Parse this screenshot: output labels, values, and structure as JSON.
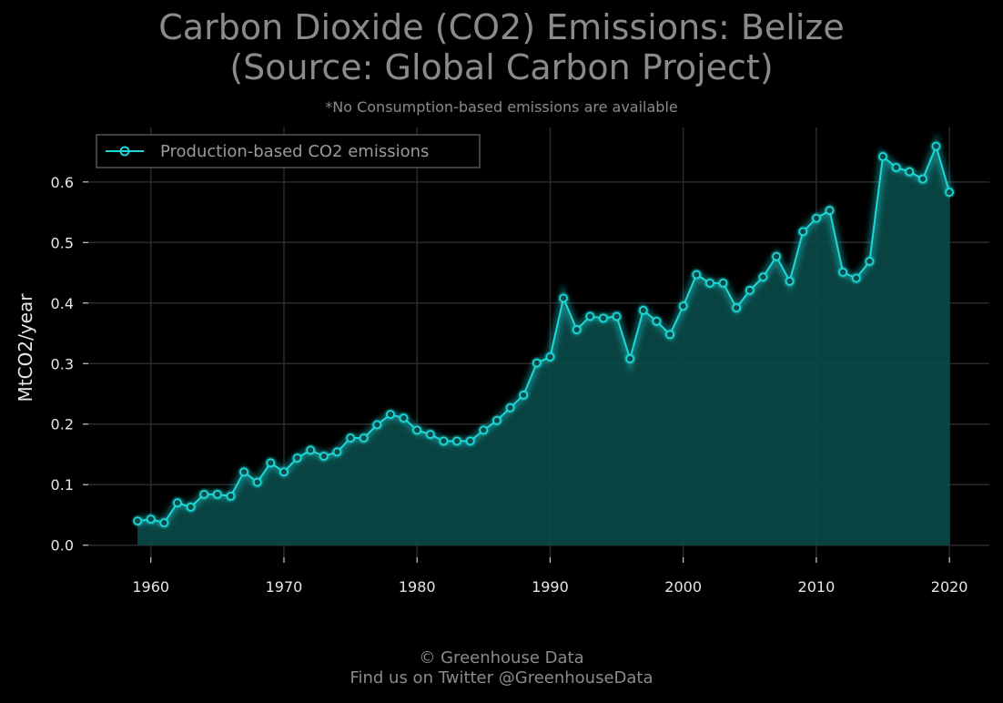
{
  "header": {
    "title_line1": "Carbon Dioxide (CO2) Emissions: Belize",
    "title_line2": "(Source: Global Carbon Project)",
    "subtitle": "*No Consumption-based emissions are available"
  },
  "footer": {
    "line1": "© Greenhouse Data",
    "line2": "Find us on Twitter @GreenhouseData"
  },
  "colors": {
    "background": "#000000",
    "line": "#1ed8d8",
    "fill": "#0a4a48",
    "grid": "#2a2a2a",
    "text": "#e6e6e6",
    "title": "#8a8a8a"
  },
  "chart_data": {
    "type": "area",
    "ylabel": "MtCO2/year",
    "xlim": [
      1955.3,
      2023.0
    ],
    "ylim": [
      -0.02,
      0.69
    ],
    "xticks": [
      1960,
      1970,
      1980,
      1990,
      2000,
      2010,
      2020
    ],
    "yticks": [
      0.0,
      0.1,
      0.2,
      0.3,
      0.4,
      0.5,
      0.6
    ],
    "ytick_labels": [
      "0.0",
      "0.1",
      "0.2",
      "0.3",
      "0.4",
      "0.5",
      "0.6"
    ],
    "grid": true,
    "legend_position": "top-left",
    "series": [
      {
        "name": "Production-based CO2 emissions",
        "x": [
          1959,
          1960,
          1961,
          1962,
          1963,
          1964,
          1965,
          1966,
          1967,
          1968,
          1969,
          1970,
          1971,
          1972,
          1973,
          1974,
          1975,
          1976,
          1977,
          1978,
          1979,
          1980,
          1981,
          1982,
          1983,
          1984,
          1985,
          1986,
          1987,
          1988,
          1989,
          1990,
          1991,
          1992,
          1993,
          1994,
          1995,
          1996,
          1997,
          1998,
          1999,
          2000,
          2001,
          2002,
          2003,
          2004,
          2005,
          2006,
          2007,
          2008,
          2009,
          2010,
          2011,
          2012,
          2013,
          2014,
          2015,
          2016,
          2017,
          2018,
          2019,
          2020
        ],
        "y": [
          0.04,
          0.043,
          0.037,
          0.07,
          0.063,
          0.084,
          0.084,
          0.081,
          0.121,
          0.104,
          0.136,
          0.121,
          0.144,
          0.157,
          0.147,
          0.154,
          0.177,
          0.177,
          0.199,
          0.216,
          0.21,
          0.19,
          0.183,
          0.172,
          0.172,
          0.172,
          0.19,
          0.206,
          0.227,
          0.248,
          0.301,
          0.311,
          0.408,
          0.356,
          0.378,
          0.375,
          0.378,
          0.308,
          0.388,
          0.37,
          0.348,
          0.395,
          0.447,
          0.433,
          0.433,
          0.392,
          0.421,
          0.443,
          0.477,
          0.436,
          0.518,
          0.54,
          0.553,
          0.451,
          0.441,
          0.469,
          0.642,
          0.624,
          0.617,
          0.605,
          0.659,
          0.583
        ]
      }
    ]
  }
}
